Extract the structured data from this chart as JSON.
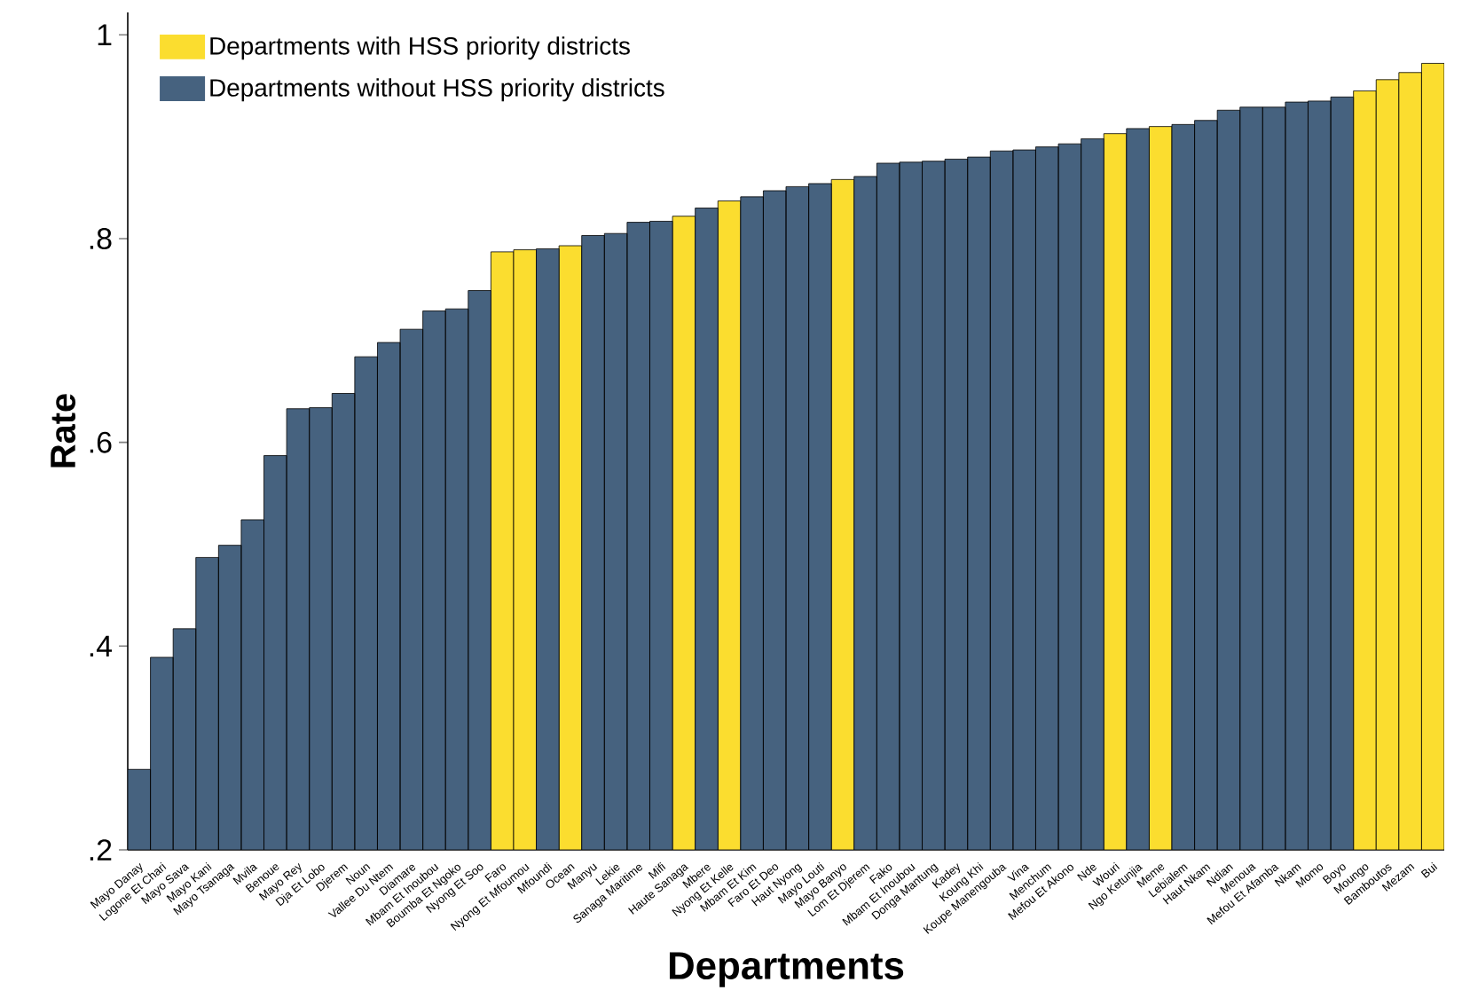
{
  "chart_data": {
    "type": "bar",
    "xlabel": "Departments",
    "ylabel": "Rate",
    "categories": [
      "Mayo Danay",
      "Logone Et Chari",
      "Mayo Sava",
      "Mayo Kani",
      "Mayo Tsanaga",
      "Mvila",
      "Benoue",
      "Mayo Rey",
      "Dja Et Lobo",
      "Djerem",
      "Noun",
      "Vallee Du Ntem",
      "Diamare",
      "Mbam Et Inoubou",
      "Boumba Et Ngoko",
      "Nyong Et Soo",
      "Faro",
      "Nyong Et Mfoumou",
      "Mfoundi",
      "Ocean",
      "Manyu",
      "Lekie",
      "Sanaga Maritime",
      "Mifi",
      "Haute Sanaga",
      "Mbere",
      "Nyong Et Kelle",
      "Mbam Et Kim",
      "Faro Et Deo",
      "Haut Nyong",
      "Mayo Louti",
      "Mayo Banyo",
      "Lom Et Djerem",
      "Fako",
      "Mbam Et Inoubou",
      "Donga Mantung",
      "Kadey",
      "Koung Khi",
      "Koupe Manengouba",
      "Vina",
      "Menchum",
      "Mefou Et Akono",
      "Nde",
      "Wouri",
      "Ngo Ketunjia",
      "Meme",
      "Lebialem",
      "Haut Nkam",
      "Ndian",
      "Menoua",
      "Mefou Et Afamba",
      "Nkam",
      "Momo",
      "Boyo",
      "Moungo",
      "Bamboutos",
      "Mezam",
      "Bui"
    ],
    "series": [
      {
        "name": "Departments with HSS priority districts",
        "color": "#fbdd2f",
        "values": [
          null,
          null,
          null,
          null,
          null,
          null,
          null,
          null,
          null,
          null,
          null,
          null,
          null,
          null,
          null,
          null,
          0.787,
          0.789,
          null,
          0.793,
          null,
          null,
          null,
          null,
          0.822,
          null,
          0.837,
          null,
          null,
          null,
          null,
          0.858,
          null,
          null,
          null,
          null,
          null,
          null,
          null,
          null,
          null,
          null,
          null,
          0.903,
          null,
          0.91,
          null,
          null,
          null,
          null,
          null,
          null,
          null,
          null,
          0.945,
          0.956,
          0.963,
          0.972
        ]
      },
      {
        "name": "Departments without HSS priority districts",
        "color": "#46627f",
        "values": [
          0.279,
          0.389,
          0.417,
          0.487,
          0.499,
          0.524,
          0.587,
          0.633,
          0.634,
          0.648,
          0.684,
          0.698,
          0.711,
          0.729,
          0.731,
          0.749,
          null,
          null,
          0.79,
          null,
          0.803,
          0.805,
          0.816,
          0.817,
          null,
          0.83,
          null,
          0.841,
          0.847,
          0.851,
          0.854,
          null,
          0.861,
          0.874,
          0.875,
          0.876,
          0.878,
          0.88,
          0.886,
          0.887,
          0.89,
          0.893,
          0.898,
          null,
          0.908,
          null,
          0.912,
          0.916,
          0.926,
          0.929,
          0.929,
          0.934,
          0.935,
          0.939,
          null,
          null,
          null,
          null
        ]
      }
    ],
    "ylim": [
      0.2,
      1.022
    ],
    "yticks": [
      {
        "value": 0.2,
        "label": ".2"
      },
      {
        "value": 0.4,
        "label": ".4"
      },
      {
        "value": 0.6,
        "label": ".6"
      },
      {
        "value": 0.8,
        "label": ".8"
      },
      {
        "value": 1,
        "label": "1"
      }
    ],
    "legend": "top left",
    "grid": false
  }
}
